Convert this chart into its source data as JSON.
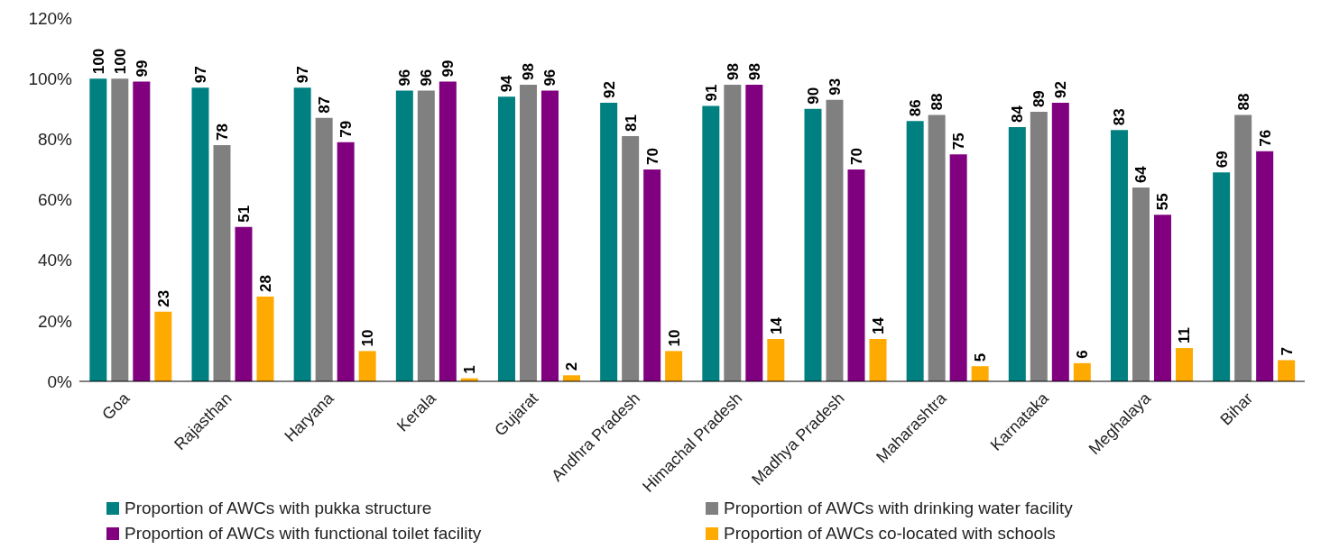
{
  "chart_data": {
    "type": "bar",
    "categories": [
      "Goa",
      "Rajasthan",
      "Haryana",
      "Kerala",
      "Gujarat",
      "Andhra Pradesh",
      "Himachal Pradesh",
      "Madhya Pradesh",
      "Maharashtra",
      "Karnataka",
      "Meghalaya",
      "Bihar"
    ],
    "series": [
      {
        "name": "Proportion of AWCs with pukka structure",
        "color": "#008080",
        "values": [
          100,
          97,
          97,
          96,
          94,
          92,
          91,
          90,
          86,
          84,
          83,
          69
        ]
      },
      {
        "name": "Proportion of AWCs with drinking water facility",
        "color": "#808080",
        "values": [
          100,
          78,
          87,
          96,
          98,
          81,
          98,
          93,
          88,
          89,
          64,
          88
        ]
      },
      {
        "name": "Proportion of AWCs with functional toilet facility",
        "color": "#800080",
        "values": [
          99,
          51,
          79,
          99,
          96,
          70,
          98,
          70,
          75,
          92,
          55,
          76
        ]
      },
      {
        "name": "Proportion of AWCs co-located with schools",
        "color": "#ffaa00",
        "values": [
          23,
          28,
          10,
          1,
          2,
          10,
          14,
          14,
          5,
          6,
          11,
          7
        ]
      }
    ],
    "ylim": [
      0,
      120
    ],
    "yticks": [
      {
        "value": 0,
        "label": "0%"
      },
      {
        "value": 20,
        "label": "20%"
      },
      {
        "value": 40,
        "label": "40%"
      },
      {
        "value": 60,
        "label": "60%"
      },
      {
        "value": 80,
        "label": "80%"
      },
      {
        "value": 100,
        "label": "100%"
      },
      {
        "value": 120,
        "label": "120%"
      }
    ],
    "data_labels": true,
    "grid": false,
    "legend": "bottom"
  }
}
